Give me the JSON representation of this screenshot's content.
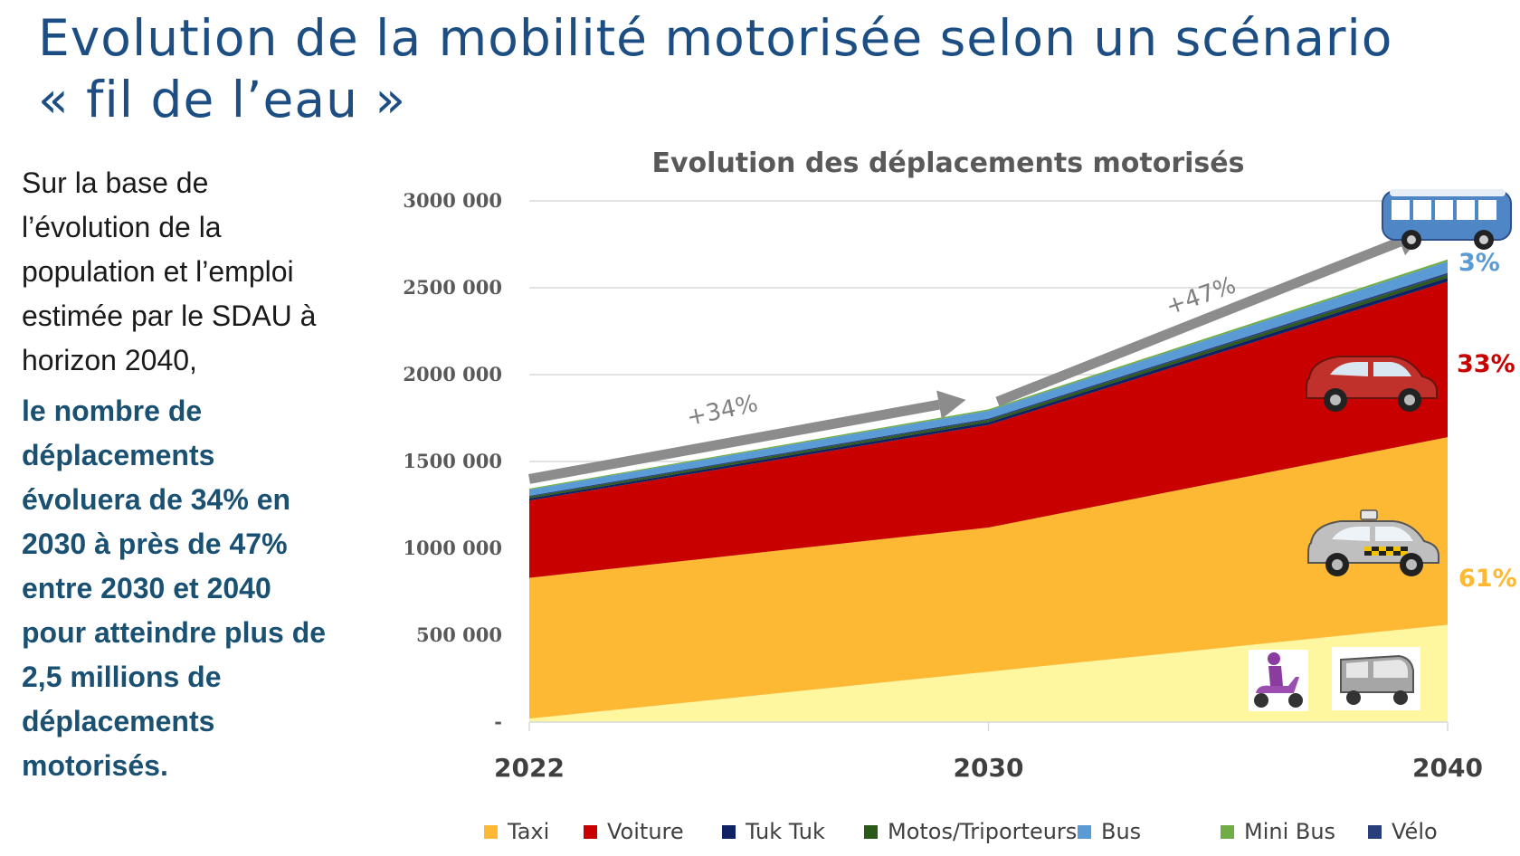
{
  "page": {
    "title_line1": "Evolution de la mobilité motorisée selon un scénario",
    "title_line2": "« fil de l’eau »",
    "intro_lines": [
      "Sur la base de",
      "l’évolution de la",
      "population et l’emploi",
      "estimée par le SDAU à",
      "horizon 2040,"
    ],
    "highlight_lines": [
      "le nombre de",
      "déplacements",
      "évoluera de 34% en",
      "2030 à près de 47%",
      "entre 2030 et 2040",
      "pour atteindre plus de",
      "2,5 millions de",
      "déplacements",
      "motorisés."
    ]
  },
  "chart_data": {
    "type": "area",
    "stacked": true,
    "title": "Evolution des déplacements motorisés",
    "categories": [
      "2022",
      "2030",
      "2040"
    ],
    "ylim": [
      0,
      3000000
    ],
    "yticks": [
      0,
      500000,
      1000000,
      1500000,
      2000000,
      2500000,
      3000000
    ],
    "ytick_labels": [
      "-",
      "500 000",
      "1000 000",
      "1500 000",
      "2000 000",
      "2500 000",
      "3000 000"
    ],
    "grid": true,
    "legend_position": "bottom",
    "series": [
      {
        "name": "",
        "color": "#fff79f",
        "values": [
          20000,
          290000,
          560000
        ]
      },
      {
        "name": "Taxi",
        "color": "#fdb933",
        "values": [
          810000,
          830000,
          1080000
        ]
      },
      {
        "name": "Voiture",
        "color": "#c80000",
        "values": [
          445000,
          590000,
          895000
        ]
      },
      {
        "name": "Tuk Tuk",
        "color": "#0e2264",
        "values": [
          12000,
          16000,
          22000
        ]
      },
      {
        "name": "Motos/Triporteurs",
        "color": "#2b5a18",
        "values": [
          10000,
          13000,
          18000
        ]
      },
      {
        "name": "Vélo",
        "color": "#283f7c",
        "values": [
          6000,
          8000,
          11000
        ]
      },
      {
        "name": "Bus",
        "color": "#5b9bd5",
        "values": [
          35000,
          45000,
          65000
        ]
      },
      {
        "name": "Mini Bus",
        "color": "#70ad47",
        "values": [
          6000,
          8000,
          12000
        ]
      }
    ],
    "legend_order": [
      "Taxi",
      "Voiture",
      "Tuk Tuk",
      "Motos/Triporteurs",
      "Bus",
      "Mini Bus",
      "Vélo"
    ],
    "annotations": {
      "growth_1": "+34%",
      "growth_2": "+47%",
      "share_bus": {
        "text": "3%",
        "color": "#5b9bd5"
      },
      "share_voiture": {
        "text": "33%",
        "color": "#c80000"
      },
      "share_taxi": {
        "text": "61%",
        "color": "#fdb933"
      }
    },
    "icons": [
      "bus-icon",
      "car-icon",
      "taxi-icon",
      "scooter-icon",
      "tuk-tuk-icon"
    ]
  }
}
